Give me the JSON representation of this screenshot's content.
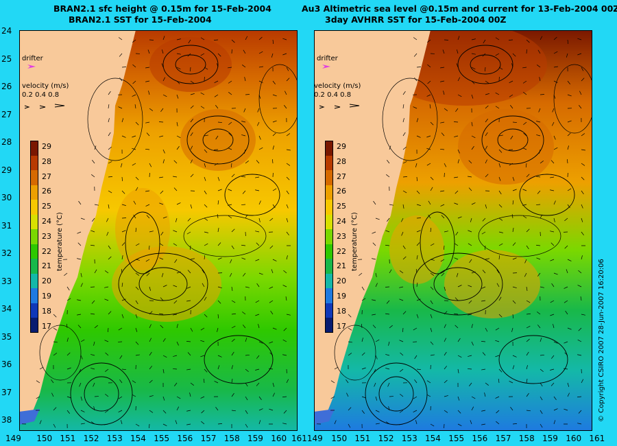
{
  "titles": {
    "left_line1": "BRAN2.1 sfc height @ 0.15m for 15-Feb-2004",
    "left_line2": "BRAN2.1 SST for 15-Feb-2004",
    "right_line1": "Au3 Altimetric sea level  @0.15m and current for 13-Feb-2004 00Z",
    "right_line2": "3day AVHRR SST for 15-Feb-2004 00Z"
  },
  "y_axis": [
    "24",
    "25",
    "26",
    "27",
    "28",
    "29",
    "30",
    "31",
    "32",
    "33",
    "34",
    "35",
    "36",
    "37",
    "38"
  ],
  "x_axis_left": [
    "149",
    "150",
    "151",
    "152",
    "153",
    "154",
    "155",
    "156",
    "157",
    "158",
    "159",
    "160",
    "161"
  ],
  "x_axis_right": [
    "150",
    "151",
    "152",
    "153",
    "154",
    "155",
    "156",
    "157",
    "158",
    "159",
    "160",
    "161"
  ],
  "x_axis_join": "161149",
  "drifter_label": "drifter",
  "velocity": {
    "title": "velocity (m/s)",
    "scale": "0.2 0.4 0.8"
  },
  "colorbar": {
    "label": "temperature (°C)",
    "ticks": [
      "29",
      "28",
      "27",
      "26",
      "25",
      "24",
      "23",
      "22",
      "21",
      "20",
      "19",
      "18",
      "17"
    ],
    "colors": [
      "#7a1800",
      "#b83a00",
      "#d66a00",
      "#eda000",
      "#f7c800",
      "#d8e000",
      "#7ad800",
      "#2ec800",
      "#18b84a",
      "#14b8a8",
      "#1e7ae0",
      "#1038b8",
      "#081c70"
    ]
  },
  "copyright": "© Copyright CSIRO 2007    28-Jun-2007 16:20:06",
  "colors": {
    "background": "#22d8f5",
    "land": "#f8c99a",
    "drifter": "#e040e0"
  }
}
